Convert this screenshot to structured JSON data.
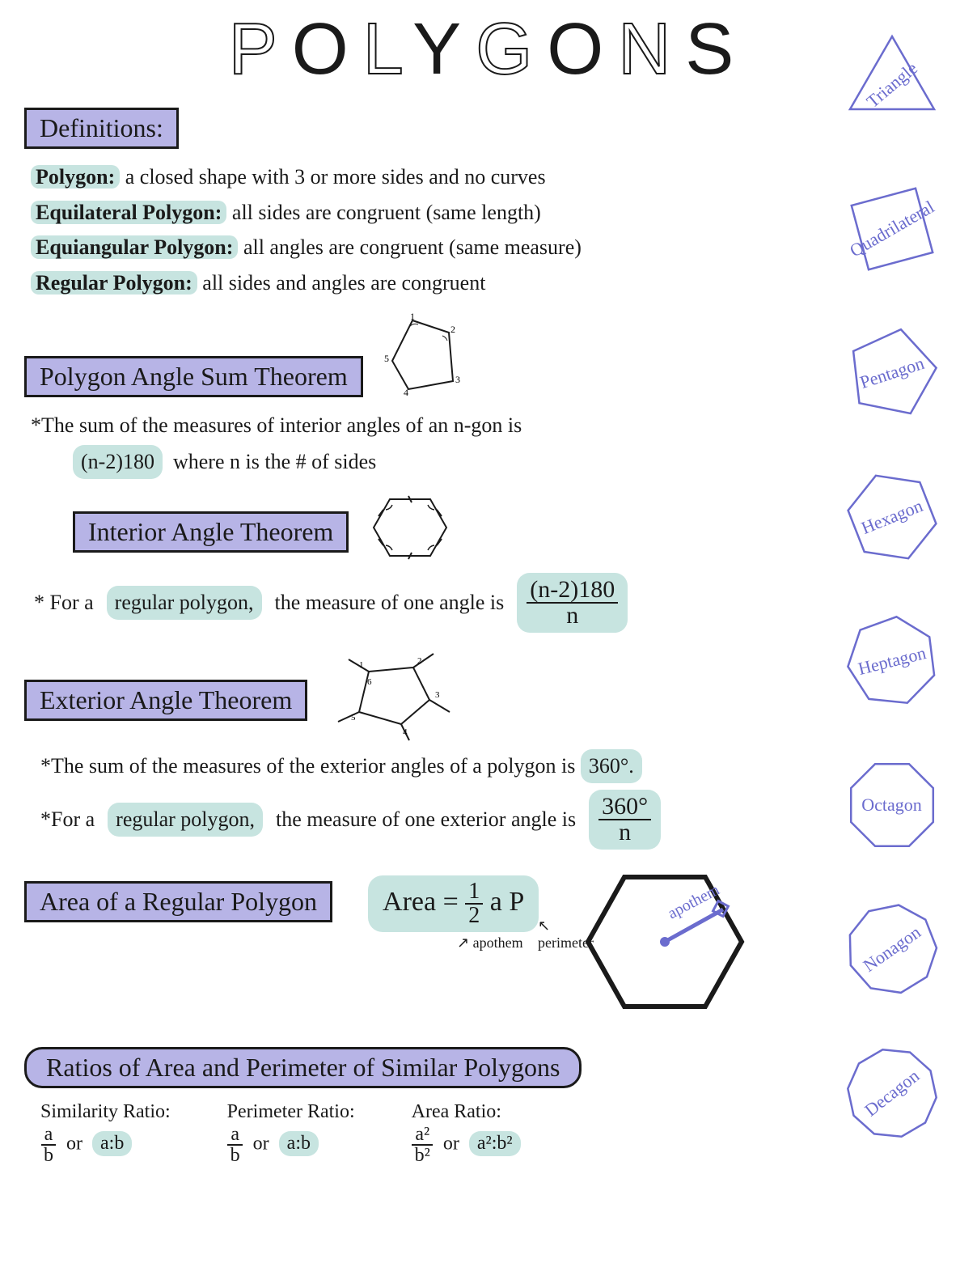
{
  "colors": {
    "box_bg": "#b7b4e6",
    "highlight_bg": "#c7e4e0",
    "shape_stroke": "#6b6cce",
    "text": "#1a1a1a",
    "background": "#ffffff"
  },
  "title": "POLYGONS",
  "sections": {
    "definitions": {
      "heading": "Definitions:",
      "items": [
        {
          "term": "Polygon:",
          "def": "a closed shape with 3 or more sides and no curves"
        },
        {
          "term": "Equilateral Polygon:",
          "def": "all sides are congruent (same length)"
        },
        {
          "term": "Equiangular Polygon:",
          "def": "all angles are congruent (same measure)"
        },
        {
          "term": "Regular Polygon:",
          "def": "all sides and angles are congruent"
        }
      ]
    },
    "angle_sum": {
      "heading": "Polygon Angle Sum Theorem",
      "text_pre": "*The sum of the measures of interior angles of an n-gon is",
      "formula": "(n-2)180",
      "text_post": "where n is the # of sides"
    },
    "interior_angle": {
      "heading": "Interior Angle Theorem",
      "text_pre": "* For a",
      "hl": "regular polygon,",
      "text_post": "the measure of one angle is",
      "formula_num": "(n-2)180",
      "formula_den": "n"
    },
    "exterior_angle": {
      "heading": "Exterior Angle Theorem",
      "line1_pre": "*The sum of the measures of the exterior angles of a polygon is",
      "line1_val": "360°.",
      "line2_pre": "*For a",
      "line2_hl": "regular polygon,",
      "line2_post": "the measure of one exterior angle is",
      "formula_num": "360°",
      "formula_den": "n"
    },
    "area": {
      "heading": "Area of a Regular Polygon",
      "formula_label": "Area =",
      "half_num": "1",
      "half_den": "2",
      "a": "a",
      "p": "P",
      "ann_apothem": "apothem",
      "ann_perimeter": "perimeter",
      "hex_label": "apothem"
    },
    "ratios": {
      "heading": "Ratios of Area and Perimeter of Similar Polygons",
      "cols": [
        {
          "title": "Similarity Ratio:",
          "frac_num": "a",
          "frac_den": "b",
          "or": "or",
          "alt": "a:b"
        },
        {
          "title": "Perimeter Ratio:",
          "frac_num": "a",
          "frac_den": "b",
          "or": "or",
          "alt": "a:b"
        },
        {
          "title": "Area Ratio:",
          "frac_num": "a²",
          "frac_den": "b²",
          "or": "or",
          "alt": "a²:b²"
        }
      ]
    }
  },
  "shapes": [
    {
      "label": "Triangle",
      "sides": 3
    },
    {
      "label": "Quadrilateral",
      "sides": 4
    },
    {
      "label": "Pentagon",
      "sides": 5
    },
    {
      "label": "Hexagon",
      "sides": 6
    },
    {
      "label": "Heptagon",
      "sides": 7
    },
    {
      "label": "Octagon",
      "sides": 8
    },
    {
      "label": "Nonagon",
      "sides": 9
    },
    {
      "label": "Decagon",
      "sides": 10
    }
  ],
  "pentagon_vertices": [
    "1",
    "2",
    "3",
    "4",
    "5"
  ]
}
